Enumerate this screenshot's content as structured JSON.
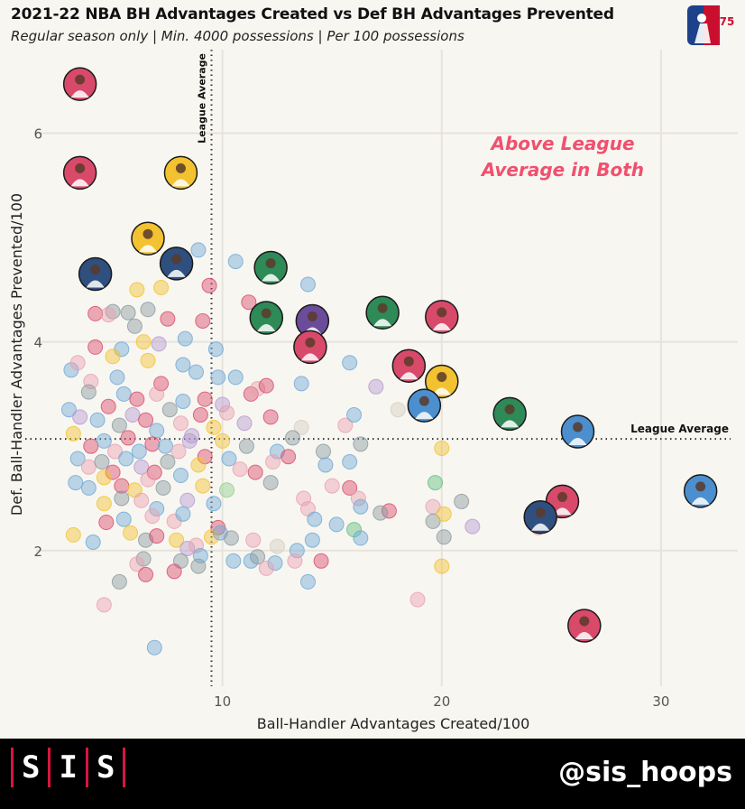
{
  "header": {
    "title": "2021-22 NBA BH Advantages Created vs Def BH Advantages Prevented",
    "subtitle": "Regular season only | Min. 4000 possessions | Per 100 possessions",
    "logo_text": "75"
  },
  "footer": {
    "brand_letters": [
      "S",
      "I",
      "S"
    ],
    "handle": "@sis_hoops",
    "background": "#000000",
    "accent": "#d6163f"
  },
  "chart_data": {
    "type": "scatter",
    "title": "2021-22 NBA BH Advantages Created vs Def BH Advantages Prevented",
    "subtitle": "Regular season only | Min. 4000 possessions | Per 100 possessions",
    "xlabel": "Ball-Handler Advantages Created/100",
    "ylabel": "Def. Ball-Handler Advantages Prevented/100",
    "xlim": [
      1.5,
      33.5
    ],
    "ylim": [
      0.7,
      6.8
    ],
    "xticks": [
      10,
      20,
      30
    ],
    "yticks": [
      2,
      4,
      6
    ],
    "grid": true,
    "league_average": {
      "x": 9.5,
      "y": 3.07,
      "label": "League Average"
    },
    "quadrant_label": "Above League Average in Both",
    "quadrant_label_color": "#f0506e",
    "highlighted_players": [
      {
        "x": 3.5,
        "y": 6.47,
        "color": "#d94a6a"
      },
      {
        "x": 3.5,
        "y": 5.62,
        "color": "#d94a6a"
      },
      {
        "x": 8.1,
        "y": 5.62,
        "color": "#f2c230"
      },
      {
        "x": 6.6,
        "y": 4.99,
        "color": "#f2c230"
      },
      {
        "x": 4.2,
        "y": 4.65,
        "color": "#2f4f7f"
      },
      {
        "x": 7.9,
        "y": 4.75,
        "color": "#2f4f7f"
      },
      {
        "x": 12.2,
        "y": 4.71,
        "color": "#2e8a57"
      },
      {
        "x": 12.0,
        "y": 4.23,
        "color": "#2e8a57"
      },
      {
        "x": 14.1,
        "y": 4.2,
        "color": "#6b4c9a"
      },
      {
        "x": 14.0,
        "y": 3.95,
        "color": "#d94a6a"
      },
      {
        "x": 17.3,
        "y": 4.28,
        "color": "#2e8a57"
      },
      {
        "x": 20.0,
        "y": 4.24,
        "color": "#d94a6a"
      },
      {
        "x": 18.5,
        "y": 3.77,
        "color": "#d94a6a"
      },
      {
        "x": 20.0,
        "y": 3.62,
        "color": "#f2c230"
      },
      {
        "x": 19.2,
        "y": 3.39,
        "color": "#4b8fcf"
      },
      {
        "x": 23.1,
        "y": 3.31,
        "color": "#2e8a57"
      },
      {
        "x": 26.2,
        "y": 3.14,
        "color": "#4b8fcf"
      },
      {
        "x": 31.8,
        "y": 2.57,
        "color": "#4b8fcf"
      },
      {
        "x": 25.5,
        "y": 2.47,
        "color": "#d94a6a"
      },
      {
        "x": 24.5,
        "y": 2.32,
        "color": "#2f4f7f"
      },
      {
        "x": 26.5,
        "y": 1.28,
        "color": "#d94a6a"
      }
    ],
    "other_players": [
      {
        "x": 8.9,
        "y": 4.88,
        "color": "#6fa8d6"
      },
      {
        "x": 10.6,
        "y": 4.77,
        "color": "#6fa8d6"
      },
      {
        "x": 13.9,
        "y": 4.55,
        "color": "#6fa8d6"
      },
      {
        "x": 11.2,
        "y": 4.38,
        "color": "#d94a6a"
      },
      {
        "x": 9.4,
        "y": 4.54,
        "color": "#d94a6a"
      },
      {
        "x": 6.1,
        "y": 4.5,
        "color": "#f2c230"
      },
      {
        "x": 7.2,
        "y": 4.52,
        "color": "#f2c230"
      },
      {
        "x": 5.0,
        "y": 4.29,
        "color": "#8a9aa0"
      },
      {
        "x": 4.2,
        "y": 4.27,
        "color": "#d94a6a"
      },
      {
        "x": 5.7,
        "y": 4.28,
        "color": "#8a9aa0"
      },
      {
        "x": 6.6,
        "y": 4.31,
        "color": "#8a9aa0"
      },
      {
        "x": 7.5,
        "y": 4.22,
        "color": "#d94a6a"
      },
      {
        "x": 9.1,
        "y": 4.2,
        "color": "#d94a6a"
      },
      {
        "x": 4.8,
        "y": 4.26,
        "color": "#e8a0b0"
      },
      {
        "x": 6.0,
        "y": 4.15,
        "color": "#8a9aa0"
      },
      {
        "x": 8.3,
        "y": 4.03,
        "color": "#6fa8d6"
      },
      {
        "x": 9.7,
        "y": 3.93,
        "color": "#6fa8d6"
      },
      {
        "x": 6.4,
        "y": 4.0,
        "color": "#f2c230"
      },
      {
        "x": 7.1,
        "y": 3.98,
        "color": "#b59ad0"
      },
      {
        "x": 5.4,
        "y": 3.93,
        "color": "#6fa8d6"
      },
      {
        "x": 4.2,
        "y": 3.95,
        "color": "#d94a6a"
      },
      {
        "x": 3.1,
        "y": 3.73,
        "color": "#6fa8d6"
      },
      {
        "x": 3.4,
        "y": 3.8,
        "color": "#e8a0b0"
      },
      {
        "x": 5.0,
        "y": 3.86,
        "color": "#f2c230"
      },
      {
        "x": 6.6,
        "y": 3.82,
        "color": "#f2c230"
      },
      {
        "x": 8.2,
        "y": 3.78,
        "color": "#6fa8d6"
      },
      {
        "x": 8.8,
        "y": 3.71,
        "color": "#6fa8d6"
      },
      {
        "x": 9.8,
        "y": 3.66,
        "color": "#6fa8d6"
      },
      {
        "x": 10.6,
        "y": 3.66,
        "color": "#6fa8d6"
      },
      {
        "x": 4.0,
        "y": 3.62,
        "color": "#e8a0b0"
      },
      {
        "x": 5.2,
        "y": 3.66,
        "color": "#6fa8d6"
      },
      {
        "x": 7.2,
        "y": 3.6,
        "color": "#d94a6a"
      },
      {
        "x": 3.9,
        "y": 3.52,
        "color": "#8a9aa0"
      },
      {
        "x": 5.5,
        "y": 3.5,
        "color": "#6fa8d6"
      },
      {
        "x": 6.1,
        "y": 3.45,
        "color": "#d94a6a"
      },
      {
        "x": 7.0,
        "y": 3.5,
        "color": "#e8a0b0"
      },
      {
        "x": 8.2,
        "y": 3.43,
        "color": "#6fa8d6"
      },
      {
        "x": 9.2,
        "y": 3.45,
        "color": "#d94a6a"
      },
      {
        "x": 10.0,
        "y": 3.4,
        "color": "#b59ad0"
      },
      {
        "x": 11.3,
        "y": 3.5,
        "color": "#d94a6a"
      },
      {
        "x": 11.6,
        "y": 3.55,
        "color": "#e8a0b0"
      },
      {
        "x": 12.0,
        "y": 3.58,
        "color": "#d94a6a"
      },
      {
        "x": 13.6,
        "y": 3.6,
        "color": "#6fa8d6"
      },
      {
        "x": 15.8,
        "y": 3.8,
        "color": "#6fa8d6"
      },
      {
        "x": 17.0,
        "y": 3.57,
        "color": "#b59ad0"
      },
      {
        "x": 18.0,
        "y": 3.35,
        "color": "#d4cfc2"
      },
      {
        "x": 3.0,
        "y": 3.35,
        "color": "#6fa8d6"
      },
      {
        "x": 3.5,
        "y": 3.28,
        "color": "#b59ad0"
      },
      {
        "x": 4.3,
        "y": 3.25,
        "color": "#6fa8d6"
      },
      {
        "x": 4.8,
        "y": 3.38,
        "color": "#d94a6a"
      },
      {
        "x": 5.3,
        "y": 3.2,
        "color": "#8a9aa0"
      },
      {
        "x": 5.9,
        "y": 3.3,
        "color": "#b59ad0"
      },
      {
        "x": 6.5,
        "y": 3.25,
        "color": "#d94a6a"
      },
      {
        "x": 7.0,
        "y": 3.15,
        "color": "#6fa8d6"
      },
      {
        "x": 7.6,
        "y": 3.35,
        "color": "#8a9aa0"
      },
      {
        "x": 8.1,
        "y": 3.22,
        "color": "#e8a0b0"
      },
      {
        "x": 8.6,
        "y": 3.1,
        "color": "#b59ad0"
      },
      {
        "x": 9.0,
        "y": 3.3,
        "color": "#d94a6a"
      },
      {
        "x": 9.6,
        "y": 3.18,
        "color": "#f2c230"
      },
      {
        "x": 10.2,
        "y": 3.32,
        "color": "#e8a0b0"
      },
      {
        "x": 11.0,
        "y": 3.22,
        "color": "#b59ad0"
      },
      {
        "x": 12.2,
        "y": 3.28,
        "color": "#d94a6a"
      },
      {
        "x": 13.6,
        "y": 3.18,
        "color": "#d4cfc2"
      },
      {
        "x": 15.6,
        "y": 3.2,
        "color": "#e8a0b0"
      },
      {
        "x": 16.0,
        "y": 3.3,
        "color": "#6fa8d6"
      },
      {
        "x": 3.2,
        "y": 3.12,
        "color": "#f2c230"
      },
      {
        "x": 4.0,
        "y": 3.0,
        "color": "#d94a6a"
      },
      {
        "x": 4.6,
        "y": 3.05,
        "color": "#6fa8d6"
      },
      {
        "x": 5.1,
        "y": 2.95,
        "color": "#e8a0b0"
      },
      {
        "x": 5.7,
        "y": 3.08,
        "color": "#d94a6a"
      },
      {
        "x": 6.2,
        "y": 2.95,
        "color": "#6fa8d6"
      },
      {
        "x": 6.8,
        "y": 3.02,
        "color": "#d94a6a"
      },
      {
        "x": 7.4,
        "y": 3.0,
        "color": "#6fa8d6"
      },
      {
        "x": 8.0,
        "y": 2.95,
        "color": "#e8a0b0"
      },
      {
        "x": 8.5,
        "y": 3.05,
        "color": "#b59ad0"
      },
      {
        "x": 9.2,
        "y": 2.9,
        "color": "#d94a6a"
      },
      {
        "x": 10.0,
        "y": 3.05,
        "color": "#f2c230"
      },
      {
        "x": 11.1,
        "y": 3.0,
        "color": "#8a9aa0"
      },
      {
        "x": 12.5,
        "y": 2.95,
        "color": "#6fa8d6"
      },
      {
        "x": 13.2,
        "y": 3.08,
        "color": "#8a9aa0"
      },
      {
        "x": 13.0,
        "y": 2.9,
        "color": "#d94a6a"
      },
      {
        "x": 14.6,
        "y": 2.95,
        "color": "#8a9aa0"
      },
      {
        "x": 16.3,
        "y": 3.02,
        "color": "#8a9aa0"
      },
      {
        "x": 20.0,
        "y": 2.98,
        "color": "#f2c230"
      },
      {
        "x": 3.4,
        "y": 2.88,
        "color": "#6fa8d6"
      },
      {
        "x": 3.9,
        "y": 2.8,
        "color": "#e8a0b0"
      },
      {
        "x": 4.5,
        "y": 2.85,
        "color": "#8a9aa0"
      },
      {
        "x": 5.0,
        "y": 2.75,
        "color": "#d94a6a"
      },
      {
        "x": 5.6,
        "y": 2.88,
        "color": "#6fa8d6"
      },
      {
        "x": 6.3,
        "y": 2.8,
        "color": "#b59ad0"
      },
      {
        "x": 6.9,
        "y": 2.75,
        "color": "#d94a6a"
      },
      {
        "x": 7.5,
        "y": 2.85,
        "color": "#8a9aa0"
      },
      {
        "x": 8.1,
        "y": 2.72,
        "color": "#6fa8d6"
      },
      {
        "x": 8.9,
        "y": 2.82,
        "color": "#f2c230"
      },
      {
        "x": 10.3,
        "y": 2.88,
        "color": "#6fa8d6"
      },
      {
        "x": 10.8,
        "y": 2.78,
        "color": "#e8a0b0"
      },
      {
        "x": 11.5,
        "y": 2.75,
        "color": "#d94a6a"
      },
      {
        "x": 12.3,
        "y": 2.85,
        "color": "#e8a0b0"
      },
      {
        "x": 14.7,
        "y": 2.82,
        "color": "#6fa8d6"
      },
      {
        "x": 15.8,
        "y": 2.85,
        "color": "#6fa8d6"
      },
      {
        "x": 3.3,
        "y": 2.65,
        "color": "#6fa8d6"
      },
      {
        "x": 3.9,
        "y": 2.6,
        "color": "#6fa8d6"
      },
      {
        "x": 4.6,
        "y": 2.7,
        "color": "#f2c230"
      },
      {
        "x": 5.4,
        "y": 2.62,
        "color": "#d94a6a"
      },
      {
        "x": 6.0,
        "y": 2.58,
        "color": "#f2c230"
      },
      {
        "x": 6.6,
        "y": 2.68,
        "color": "#e8a0b0"
      },
      {
        "x": 7.3,
        "y": 2.6,
        "color": "#8a9aa0"
      },
      {
        "x": 9.1,
        "y": 2.62,
        "color": "#f2c230"
      },
      {
        "x": 10.2,
        "y": 2.58,
        "color": "#8fcf8f"
      },
      {
        "x": 12.2,
        "y": 2.65,
        "color": "#8a9aa0"
      },
      {
        "x": 15.0,
        "y": 2.62,
        "color": "#e8a0b0"
      },
      {
        "x": 15.8,
        "y": 2.6,
        "color": "#d94a6a"
      },
      {
        "x": 16.2,
        "y": 2.5,
        "color": "#e8a0b0"
      },
      {
        "x": 19.7,
        "y": 2.65,
        "color": "#5fbf7f"
      },
      {
        "x": 4.6,
        "y": 2.45,
        "color": "#f2c230"
      },
      {
        "x": 5.4,
        "y": 2.5,
        "color": "#8a9aa0"
      },
      {
        "x": 6.3,
        "y": 2.48,
        "color": "#e8a0b0"
      },
      {
        "x": 7.0,
        "y": 2.4,
        "color": "#6fa8d6"
      },
      {
        "x": 8.4,
        "y": 2.48,
        "color": "#b59ad0"
      },
      {
        "x": 9.6,
        "y": 2.45,
        "color": "#6fa8d6"
      },
      {
        "x": 13.7,
        "y": 2.5,
        "color": "#e8a0b0"
      },
      {
        "x": 13.9,
        "y": 2.4,
        "color": "#e8a0b0"
      },
      {
        "x": 16.3,
        "y": 2.42,
        "color": "#6fa8d6"
      },
      {
        "x": 17.6,
        "y": 2.38,
        "color": "#d94a6a"
      },
      {
        "x": 17.2,
        "y": 2.36,
        "color": "#8a9aa0"
      },
      {
        "x": 19.6,
        "y": 2.42,
        "color": "#e8a0b0"
      },
      {
        "x": 20.9,
        "y": 2.47,
        "color": "#8a9aa0"
      },
      {
        "x": 4.7,
        "y": 2.27,
        "color": "#d94a6a"
      },
      {
        "x": 5.5,
        "y": 2.3,
        "color": "#6fa8d6"
      },
      {
        "x": 6.8,
        "y": 2.33,
        "color": "#e8a0b0"
      },
      {
        "x": 7.8,
        "y": 2.28,
        "color": "#e8a0b0"
      },
      {
        "x": 8.2,
        "y": 2.35,
        "color": "#6fa8d6"
      },
      {
        "x": 9.8,
        "y": 2.22,
        "color": "#d94a6a"
      },
      {
        "x": 14.2,
        "y": 2.3,
        "color": "#6fa8d6"
      },
      {
        "x": 15.2,
        "y": 2.25,
        "color": "#6fa8d6"
      },
      {
        "x": 16.0,
        "y": 2.2,
        "color": "#5fbf7f"
      },
      {
        "x": 19.6,
        "y": 2.28,
        "color": "#8a9aa0"
      },
      {
        "x": 20.1,
        "y": 2.35,
        "color": "#f2c230"
      },
      {
        "x": 21.4,
        "y": 2.23,
        "color": "#b59ad0"
      },
      {
        "x": 24.4,
        "y": 2.22,
        "color": "#e8a0b0"
      },
      {
        "x": 3.2,
        "y": 2.15,
        "color": "#f2c230"
      },
      {
        "x": 4.1,
        "y": 2.08,
        "color": "#6fa8d6"
      },
      {
        "x": 5.8,
        "y": 2.17,
        "color": "#f2c230"
      },
      {
        "x": 6.5,
        "y": 2.1,
        "color": "#8a9aa0"
      },
      {
        "x": 7.0,
        "y": 2.14,
        "color": "#d94a6a"
      },
      {
        "x": 7.9,
        "y": 2.1,
        "color": "#f2c230"
      },
      {
        "x": 8.4,
        "y": 2.02,
        "color": "#b59ad0"
      },
      {
        "x": 8.8,
        "y": 2.05,
        "color": "#e8a0b0"
      },
      {
        "x": 9.5,
        "y": 2.13,
        "color": "#f2c230"
      },
      {
        "x": 9.9,
        "y": 2.17,
        "color": "#6fa8d6"
      },
      {
        "x": 10.4,
        "y": 2.12,
        "color": "#8a9aa0"
      },
      {
        "x": 11.4,
        "y": 2.1,
        "color": "#e8a0b0"
      },
      {
        "x": 12.5,
        "y": 2.04,
        "color": "#d4cfc2"
      },
      {
        "x": 13.4,
        "y": 2.0,
        "color": "#6fa8d6"
      },
      {
        "x": 14.1,
        "y": 2.1,
        "color": "#6fa8d6"
      },
      {
        "x": 16.3,
        "y": 2.12,
        "color": "#6fa8d6"
      },
      {
        "x": 20.1,
        "y": 2.13,
        "color": "#8a9aa0"
      },
      {
        "x": 6.4,
        "y": 1.92,
        "color": "#8a9aa0"
      },
      {
        "x": 8.1,
        "y": 1.9,
        "color": "#8a9aa0"
      },
      {
        "x": 9.0,
        "y": 1.95,
        "color": "#6fa8d6"
      },
      {
        "x": 10.5,
        "y": 1.9,
        "color": "#6fa8d6"
      },
      {
        "x": 11.3,
        "y": 1.9,
        "color": "#6fa8d6"
      },
      {
        "x": 11.6,
        "y": 1.94,
        "color": "#8a9aa0"
      },
      {
        "x": 12.4,
        "y": 1.88,
        "color": "#6fa8d6"
      },
      {
        "x": 13.3,
        "y": 1.9,
        "color": "#e8a0b0"
      },
      {
        "x": 14.5,
        "y": 1.9,
        "color": "#d94a6a"
      },
      {
        "x": 6.1,
        "y": 1.87,
        "color": "#e8a0b0"
      },
      {
        "x": 7.8,
        "y": 1.8,
        "color": "#d94a6a"
      },
      {
        "x": 8.9,
        "y": 1.85,
        "color": "#8a9aa0"
      },
      {
        "x": 6.5,
        "y": 1.77,
        "color": "#d94a6a"
      },
      {
        "x": 12.0,
        "y": 1.83,
        "color": "#e8a0b0"
      },
      {
        "x": 5.3,
        "y": 1.7,
        "color": "#8a9aa0"
      },
      {
        "x": 13.9,
        "y": 1.7,
        "color": "#6fa8d6"
      },
      {
        "x": 20.0,
        "y": 1.85,
        "color": "#f2c230"
      },
      {
        "x": 18.9,
        "y": 1.53,
        "color": "#e8a0b0"
      },
      {
        "x": 4.6,
        "y": 1.48,
        "color": "#e8a0b0"
      },
      {
        "x": 6.9,
        "y": 1.07,
        "color": "#6fa8d6"
      }
    ]
  }
}
